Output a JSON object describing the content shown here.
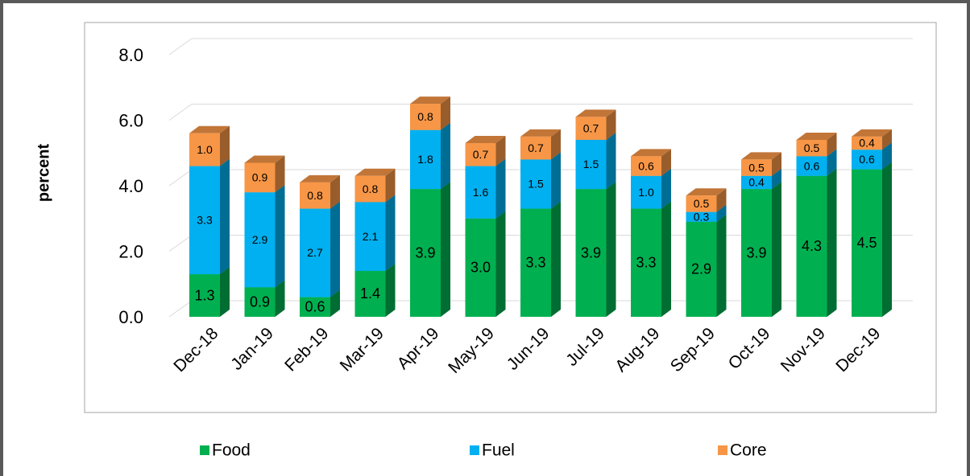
{
  "chart_data": {
    "type": "bar3d_stacked",
    "y_label": "percent",
    "categories": [
      "Dec-18",
      "Jan-19",
      "Feb-19",
      "Mar-19",
      "Apr-19",
      "May-19",
      "Jun-19",
      "Jul-19",
      "Aug-19",
      "Sep-19",
      "Oct-19",
      "Nov-19",
      "Dec-19"
    ],
    "series": [
      {
        "name": "Food",
        "color": "#00b050",
        "values": [
          1.3,
          0.9,
          0.6,
          1.4,
          3.9,
          3.0,
          3.3,
          3.9,
          3.3,
          2.9,
          3.9,
          4.3,
          4.5
        ],
        "value_labels": [
          "1.3",
          "0.9",
          "0.6",
          "1.4",
          "3.9",
          "3.0",
          "3.3",
          "3.9",
          "3.3",
          "2.9",
          "3.9",
          "4.3",
          "4.5"
        ]
      },
      {
        "name": "Fuel",
        "color": "#00b0f0",
        "values": [
          3.3,
          2.9,
          2.7,
          2.1,
          1.8,
          1.6,
          1.5,
          1.5,
          1.0,
          0.3,
          0.4,
          0.6,
          0.6
        ],
        "value_labels": [
          "3.3",
          "2.9",
          "2.7",
          "2.1",
          "1.8",
          "1.6",
          "1.5",
          "1.5",
          "1.0",
          "0.3",
          "0.4",
          "0.6",
          "0.6"
        ]
      },
      {
        "name": "Core",
        "color": "#f79646",
        "values": [
          1.0,
          0.9,
          0.8,
          0.8,
          0.8,
          0.7,
          0.7,
          0.7,
          0.6,
          0.5,
          0.5,
          0.5,
          0.4
        ],
        "value_labels": [
          "1.0",
          "0.9",
          "0.8",
          "0.8",
          "0.8",
          "0.7",
          "0.7",
          "0.7",
          "0.6",
          "0.5",
          "0.5",
          "0.5",
          "0.4"
        ]
      }
    ],
    "ylim": [
      0,
      8
    ],
    "yticks": [
      {
        "value": 0,
        "label": "0.0"
      },
      {
        "value": 2,
        "label": "2.0"
      },
      {
        "value": 4,
        "label": "4.0"
      },
      {
        "value": 6,
        "label": "6.0"
      },
      {
        "value": 8,
        "label": "8.0"
      }
    ],
    "grid": true
  }
}
